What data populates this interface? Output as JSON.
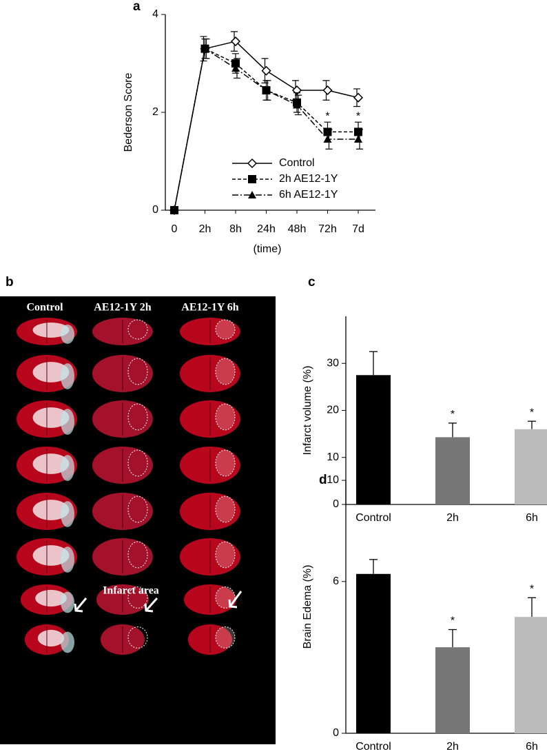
{
  "chart_data": [
    {
      "type": "line",
      "panel_label": "a",
      "y_label": "Bederson Score",
      "x_label": "(time)",
      "categories": [
        "0",
        "2h",
        "8h",
        "24h",
        "48h",
        "72h",
        "7d"
      ],
      "series": [
        {
          "name": "Control",
          "color": "#000000",
          "line_style": "solid",
          "marker": "diamond-open",
          "values": [
            0,
            3.3,
            3.45,
            2.85,
            2.45,
            2.45,
            2.3
          ],
          "errors": [
            null,
            0.25,
            0.2,
            0.25,
            0.2,
            0.2,
            0.18
          ]
        },
        {
          "name": "2h AE12-1Y",
          "color": "#000000",
          "line_style": "dashed",
          "marker": "square",
          "values": [
            0,
            3.3,
            3.0,
            2.45,
            2.2,
            1.6,
            1.6
          ],
          "errors": [
            null,
            0.2,
            0.2,
            0.2,
            0.2,
            0.2,
            0.2
          ]
        },
        {
          "name": "6h AE12-1Y",
          "color": "#000000",
          "line_style": "dashdot",
          "marker": "triangle",
          "values": [
            0,
            3.3,
            2.9,
            2.45,
            2.15,
            1.45,
            1.45
          ],
          "errors": [
            null,
            0.2,
            0.2,
            0.2,
            0.2,
            0.2,
            0.2
          ]
        }
      ],
      "ylim": [
        0,
        4
      ],
      "yticks": [
        0,
        2,
        4
      ],
      "legend": "lower-right",
      "annotations": [
        "*",
        "*"
      ]
    },
    {
      "type": "bar",
      "panel_label": "c",
      "y_label": "Infarct volume (%)",
      "categories": [
        "Control",
        "2h",
        "6h"
      ],
      "values": [
        27.5,
        14.3,
        16
      ],
      "errors": [
        5,
        3,
        1.7
      ],
      "colors": [
        "#000000",
        "#777777",
        "#bbbbbb"
      ],
      "ylim": [
        0,
        40
      ],
      "yticks": [
        0,
        10,
        20,
        30
      ],
      "annotations": [
        "*",
        "*"
      ]
    },
    {
      "type": "bar",
      "panel_label": "d",
      "y_label": "Brain Edema (%)",
      "categories": [
        "Control",
        "2h",
        "6h"
      ],
      "values": [
        6.3,
        3.4,
        4.6
      ],
      "errors": [
        0.57,
        0.7,
        0.76
      ],
      "colors": [
        "#000000",
        "#777777",
        "#bbbbbb"
      ],
      "ylim": [
        0,
        10
      ],
      "yticks": [
        0,
        6,
        10
      ],
      "annotations": [
        "*",
        "*"
      ]
    }
  ],
  "image_panel": {
    "label": "b",
    "columns": [
      "Control",
      "AE12-1Y 2h",
      "AE12-1Y 6h"
    ],
    "annotation": "Infarct area"
  }
}
